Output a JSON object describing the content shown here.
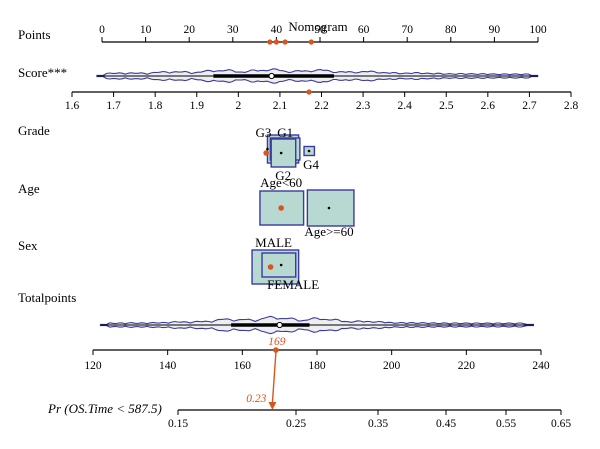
{
  "colors": {
    "axis": "#000000",
    "violin": "#3a3aa0",
    "box_fill": "#b8d8d2",
    "box_edge": "#3a3aa0",
    "highlight": "#d9541e"
  },
  "chart_data": {
    "type": "nomogram",
    "title": "Nomogram",
    "rows": {
      "points": {
        "label": "Points",
        "range": [
          0,
          100
        ],
        "ticks": [
          0,
          10,
          20,
          30,
          40,
          50,
          60,
          70,
          80,
          90,
          100
        ],
        "highlight_values": [
          38.5,
          40,
          42,
          48
        ]
      },
      "score": {
        "label": "Score***",
        "range": [
          1.6,
          2.8
        ],
        "ticks": [
          1.6,
          1.7,
          1.8,
          1.9,
          2,
          2.1,
          2.2,
          2.3,
          2.4,
          2.5,
          2.6,
          2.7,
          2.8
        ],
        "distribution": {
          "min": 1.66,
          "q1": 1.94,
          "median": 2.08,
          "q3": 2.23,
          "max": 2.72
        },
        "selected": 2.17
      },
      "grade": {
        "label": "Grade",
        "categories": [
          {
            "name": "G3",
            "center": 2.07,
            "score_span": [
              2.07,
              2.145
            ]
          },
          {
            "name": "G1",
            "center": 2.103,
            "score_span": [
              2.077,
              2.148
            ]
          },
          {
            "name": "G2",
            "center": 2.103,
            "score_span": [
              2.079,
              2.138
            ]
          },
          {
            "name": "G4",
            "center": 2.17,
            "score_span": [
              2.158,
              2.183
            ]
          }
        ],
        "selected_category": "G2"
      },
      "age": {
        "label": "Age",
        "categories": [
          {
            "name": "Age<60",
            "center": 2.103,
            "score_span": [
              2.052,
              2.157
            ]
          },
          {
            "name": "Age>=60",
            "center": 2.218,
            "score_span": [
              2.166,
              2.278
            ]
          }
        ],
        "selected_category": "Age<60"
      },
      "sex": {
        "label": "Sex",
        "categories": [
          {
            "name": "MALE",
            "center": 2.092,
            "score_span": [
              2.033,
              2.145
            ]
          },
          {
            "name": "FEMALE",
            "center": 2.103,
            "score_span": [
              2.057,
              2.138
            ]
          }
        ],
        "selected_category": "MALE"
      },
      "total_points": {
        "label": "Totalpoints",
        "range": [
          120,
          240
        ],
        "ticks": [
          120,
          140,
          160,
          180,
          200,
          220,
          240
        ],
        "distribution": {
          "min": 122,
          "q1": 157,
          "median": 170,
          "q3": 178,
          "max": 238
        },
        "selected": 169,
        "selected_label": "169"
      },
      "probability": {
        "label": "Pr (OS.Time < 587.5)",
        "ticks": [
          0.15,
          0.25,
          0.35,
          0.45,
          0.55,
          0.65
        ],
        "selected": 0.23,
        "selected_label": "0.23"
      }
    }
  }
}
